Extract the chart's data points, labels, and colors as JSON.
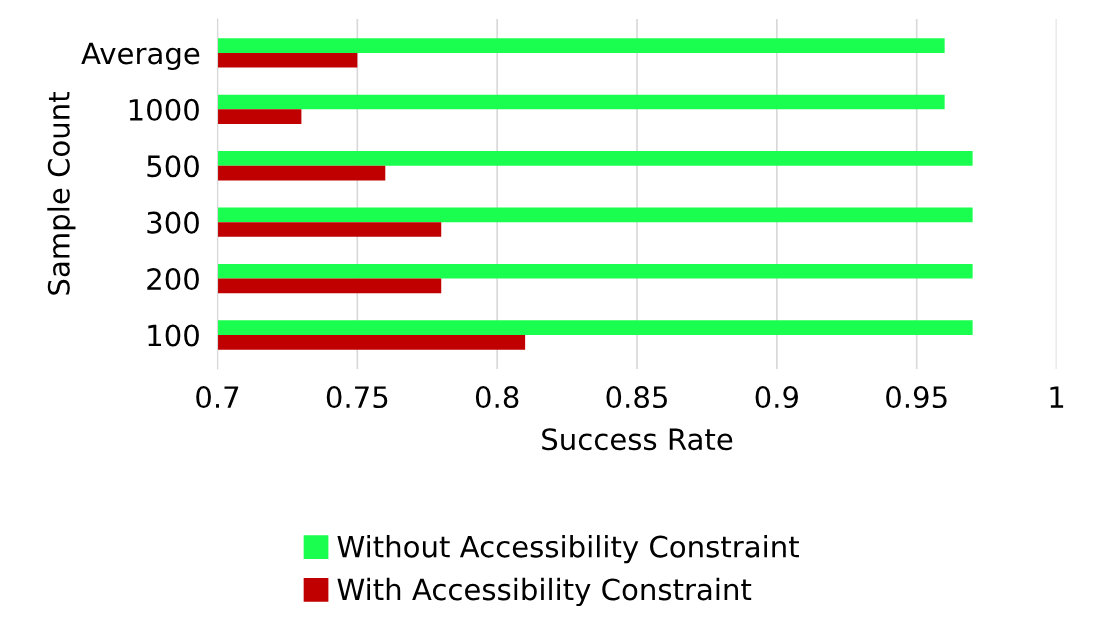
{
  "chart_data": {
    "type": "bar",
    "orientation": "horizontal",
    "xlabel": "Success Rate",
    "ylabel": "Sample Count",
    "categories": [
      "Average",
      "1000",
      "500",
      "300",
      "200",
      "100"
    ],
    "series": [
      {
        "name": "Without Accessibility Constraint",
        "color": "#1aff4f",
        "values": [
          0.96,
          0.96,
          0.97,
          0.97,
          0.97,
          0.97
        ]
      },
      {
        "name": "With Accessibility Constraint",
        "color": "#c00000",
        "values": [
          0.75,
          0.73,
          0.76,
          0.78,
          0.78,
          0.81
        ]
      }
    ],
    "xlim": [
      0.7,
      1.0
    ],
    "xticks": [
      0.7,
      0.75,
      0.8,
      0.85,
      0.9,
      0.95,
      1
    ],
    "grid": "x",
    "legend": "bottom"
  }
}
